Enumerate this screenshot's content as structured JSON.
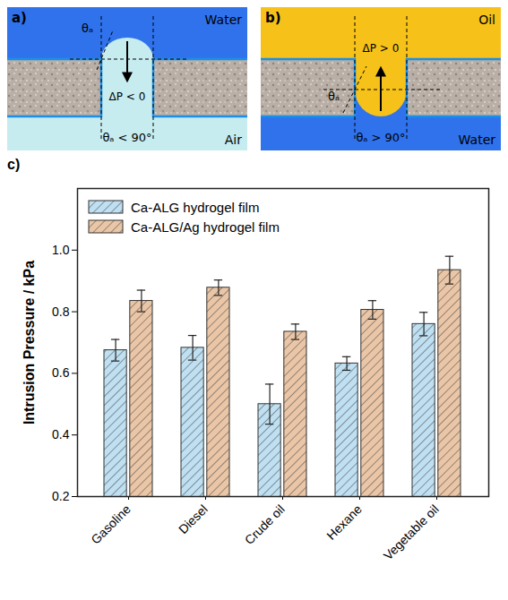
{
  "diagrams": [
    {
      "letter": "a)",
      "top_medium": "Water",
      "bottom_medium": "Air",
      "angle_label": "θₐ",
      "pressure": "ΔP < 0",
      "condition": "θₐ < 90°"
    },
    {
      "letter": "b)",
      "top_medium": "Oil",
      "bottom_medium": "Water",
      "angle_label": "θₐ",
      "pressure": "ΔP > 0",
      "condition": "θₐ > 90°"
    }
  ],
  "chart_data": {
    "type": "bar",
    "letter": "c)",
    "ylabel": "Intrusion Pressure / kPa",
    "categories": [
      "Gasoline",
      "Diesel",
      "Crude oil",
      "Hexane",
      "Vegetable oil"
    ],
    "series": [
      {
        "name": "Ca-ALG hydrogel film",
        "color": "#bfe0f2",
        "values": [
          0.675,
          0.683,
          0.5,
          0.632,
          0.76
        ],
        "errors": [
          0.035,
          0.04,
          0.065,
          0.022,
          0.038
        ]
      },
      {
        "name": "Ca-ALG/Ag hydrogel film",
        "color": "#ebc6a6",
        "values": [
          0.835,
          0.878,
          0.735,
          0.806,
          0.935
        ],
        "errors": [
          0.035,
          0.025,
          0.025,
          0.03,
          0.045
        ]
      }
    ],
    "ylim": [
      0.2,
      1.2
    ],
    "yticks": [
      0.2,
      0.4,
      0.6,
      0.8,
      {
        "value": 1,
        "label": "1.0"
      }
    ],
    "legend": "top-left",
    "grid": false
  }
}
